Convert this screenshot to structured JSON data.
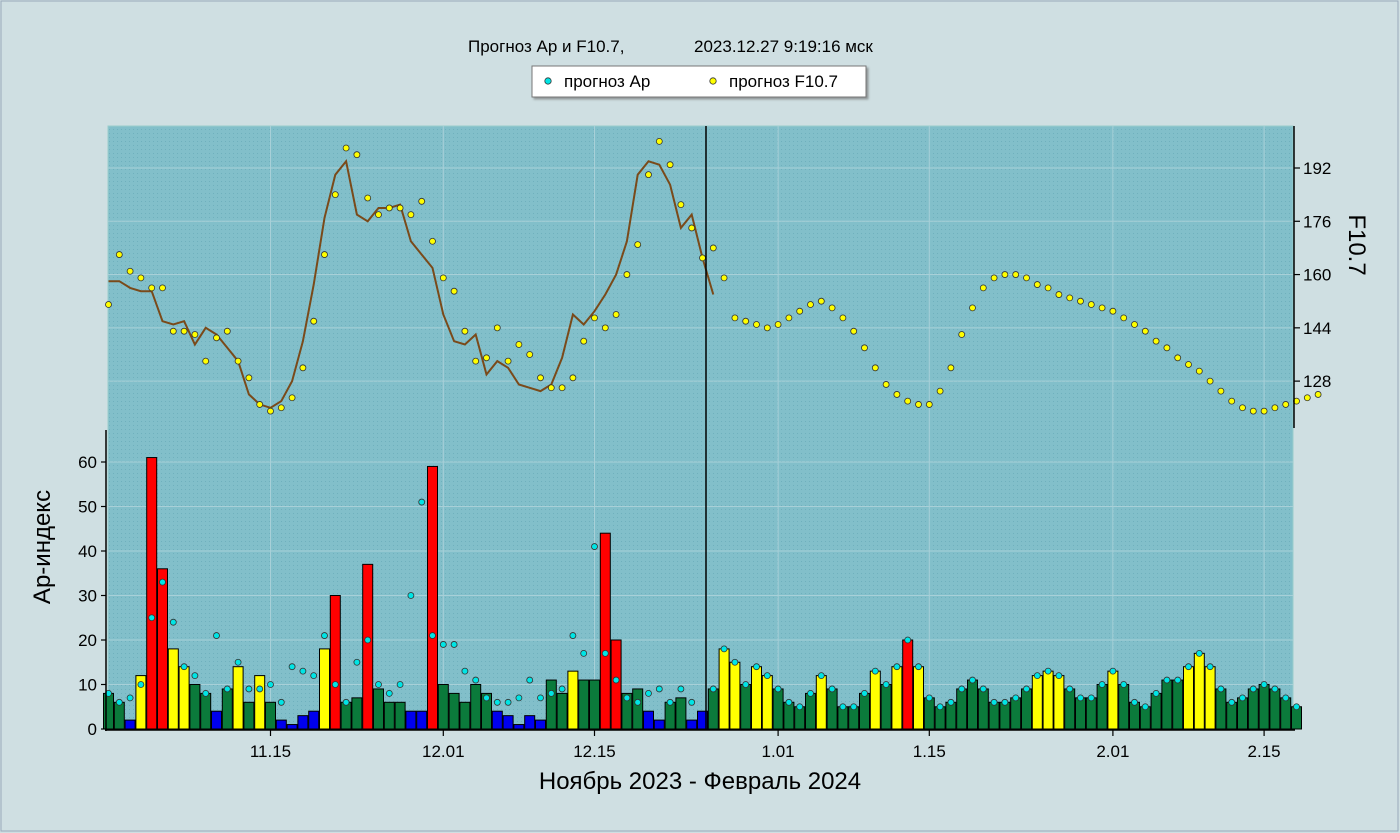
{
  "chart_data": {
    "type": "bar+scatter+line",
    "title": "Прогноз Ap и F10.7,",
    "timestamp": "2023.12.27 9:19:16 мск",
    "xlabel": "Ноябрь 2023 - Февраль 2024",
    "ylabel_left": "Ap-индекс",
    "ylabel_right": "F10.7",
    "x_ticks": [
      "11.15",
      "12.01",
      "12.15",
      "1.01",
      "1.15",
      "2.01",
      "2.15"
    ],
    "ap_ticks": [
      0,
      10,
      20,
      30,
      40,
      50,
      60
    ],
    "f107_ticks": [
      128,
      144,
      160,
      176,
      192
    ],
    "ap_range": [
      0,
      68
    ],
    "f107_range": [
      114,
      204
    ],
    "legend": {
      "items": [
        {
          "label": "прогноз Ap",
          "color": "#00e5e5"
        },
        {
          "label": "прогноз F10.7",
          "color": "#ffff00"
        }
      ],
      "placement": "top-center"
    },
    "colors": {
      "green": "#0b7a3b",
      "yellow": "#ffff00",
      "red": "#ff0000",
      "blue": "#0000ee",
      "line": "#7a4a1a",
      "divider": "#000000",
      "plot_bg": "#82bfca",
      "page_bg": "#cfdfe2"
    },
    "start_date": "2023-10-31",
    "ap_observed": [
      8,
      6,
      2,
      12,
      61,
      36,
      18,
      14,
      10,
      8,
      4,
      9,
      14,
      6,
      12,
      6,
      2,
      1,
      3,
      4,
      18,
      30,
      6,
      7,
      37,
      9,
      6,
      6,
      4,
      4,
      59,
      10,
      8,
      6,
      10,
      8,
      4,
      3,
      1,
      3,
      2,
      11,
      8,
      13,
      11,
      11,
      44,
      20,
      8,
      9,
      4,
      2,
      6,
      7,
      2,
      4
    ],
    "ap_forecast_past": [
      8,
      6,
      7,
      10,
      25,
      33,
      24,
      14,
      12,
      8,
      21,
      9,
      15,
      9,
      9,
      10,
      6,
      14,
      13,
      12,
      21,
      10,
      6,
      15,
      20,
      10,
      8,
      10,
      30,
      51,
      21,
      19,
      19,
      13,
      11,
      7,
      6,
      6,
      7,
      11,
      7,
      8,
      9,
      21,
      17,
      41,
      17,
      11,
      7,
      6,
      8,
      9,
      6,
      9,
      6
    ],
    "ap_forecast_future": [
      9,
      18,
      15,
      10,
      14,
      12,
      9,
      6,
      5,
      8,
      12,
      9,
      5,
      5,
      8,
      13,
      10,
      14,
      20,
      14,
      7,
      5,
      6,
      9,
      11,
      9,
      6,
      6,
      7,
      9,
      12,
      13,
      12,
      9,
      7,
      7,
      10,
      13,
      10,
      6,
      5,
      8,
      11,
      11,
      14,
      17,
      14,
      9,
      6,
      7,
      9,
      10,
      9,
      7,
      5
    ],
    "f107_observed": [
      158,
      158,
      156,
      155,
      155,
      146,
      145,
      146,
      139,
      144,
      142,
      138,
      134,
      124,
      121,
      120,
      122,
      128,
      140,
      157,
      177,
      190,
      194,
      178,
      176,
      180,
      180,
      181,
      170,
      166,
      162,
      148,
      140,
      139,
      142,
      130,
      134,
      132,
      127,
      126,
      125,
      127,
      135,
      148,
      145,
      149,
      154,
      160,
      170,
      190,
      194,
      193,
      187,
      174,
      178,
      165,
      154
    ],
    "f107_forecast_past": [
      151,
      166,
      161,
      159,
      156,
      156,
      143,
      143,
      142,
      134,
      141,
      143,
      134,
      129,
      121,
      119,
      120,
      123,
      132,
      146,
      166,
      184,
      198,
      196,
      183,
      178,
      180,
      180,
      178,
      182,
      170,
      159,
      155,
      143,
      134,
      135,
      144,
      134,
      139,
      136,
      129,
      126,
      126,
      129,
      140,
      147,
      144,
      148,
      160,
      169,
      190,
      200,
      193,
      181,
      174,
      165,
      168,
      159
    ],
    "f107_forecast_future": [
      147,
      146,
      145,
      144,
      145,
      147,
      149,
      151,
      152,
      150,
      147,
      143,
      138,
      132,
      127,
      124,
      122,
      121,
      121,
      125,
      132,
      142,
      150,
      156,
      159,
      160,
      160,
      159,
      157,
      156,
      154,
      153,
      152,
      151,
      150,
      149,
      147,
      145,
      143,
      140,
      138,
      135,
      133,
      131,
      128,
      125,
      122,
      120,
      119,
      119,
      120,
      121,
      122,
      123,
      124
    ]
  }
}
